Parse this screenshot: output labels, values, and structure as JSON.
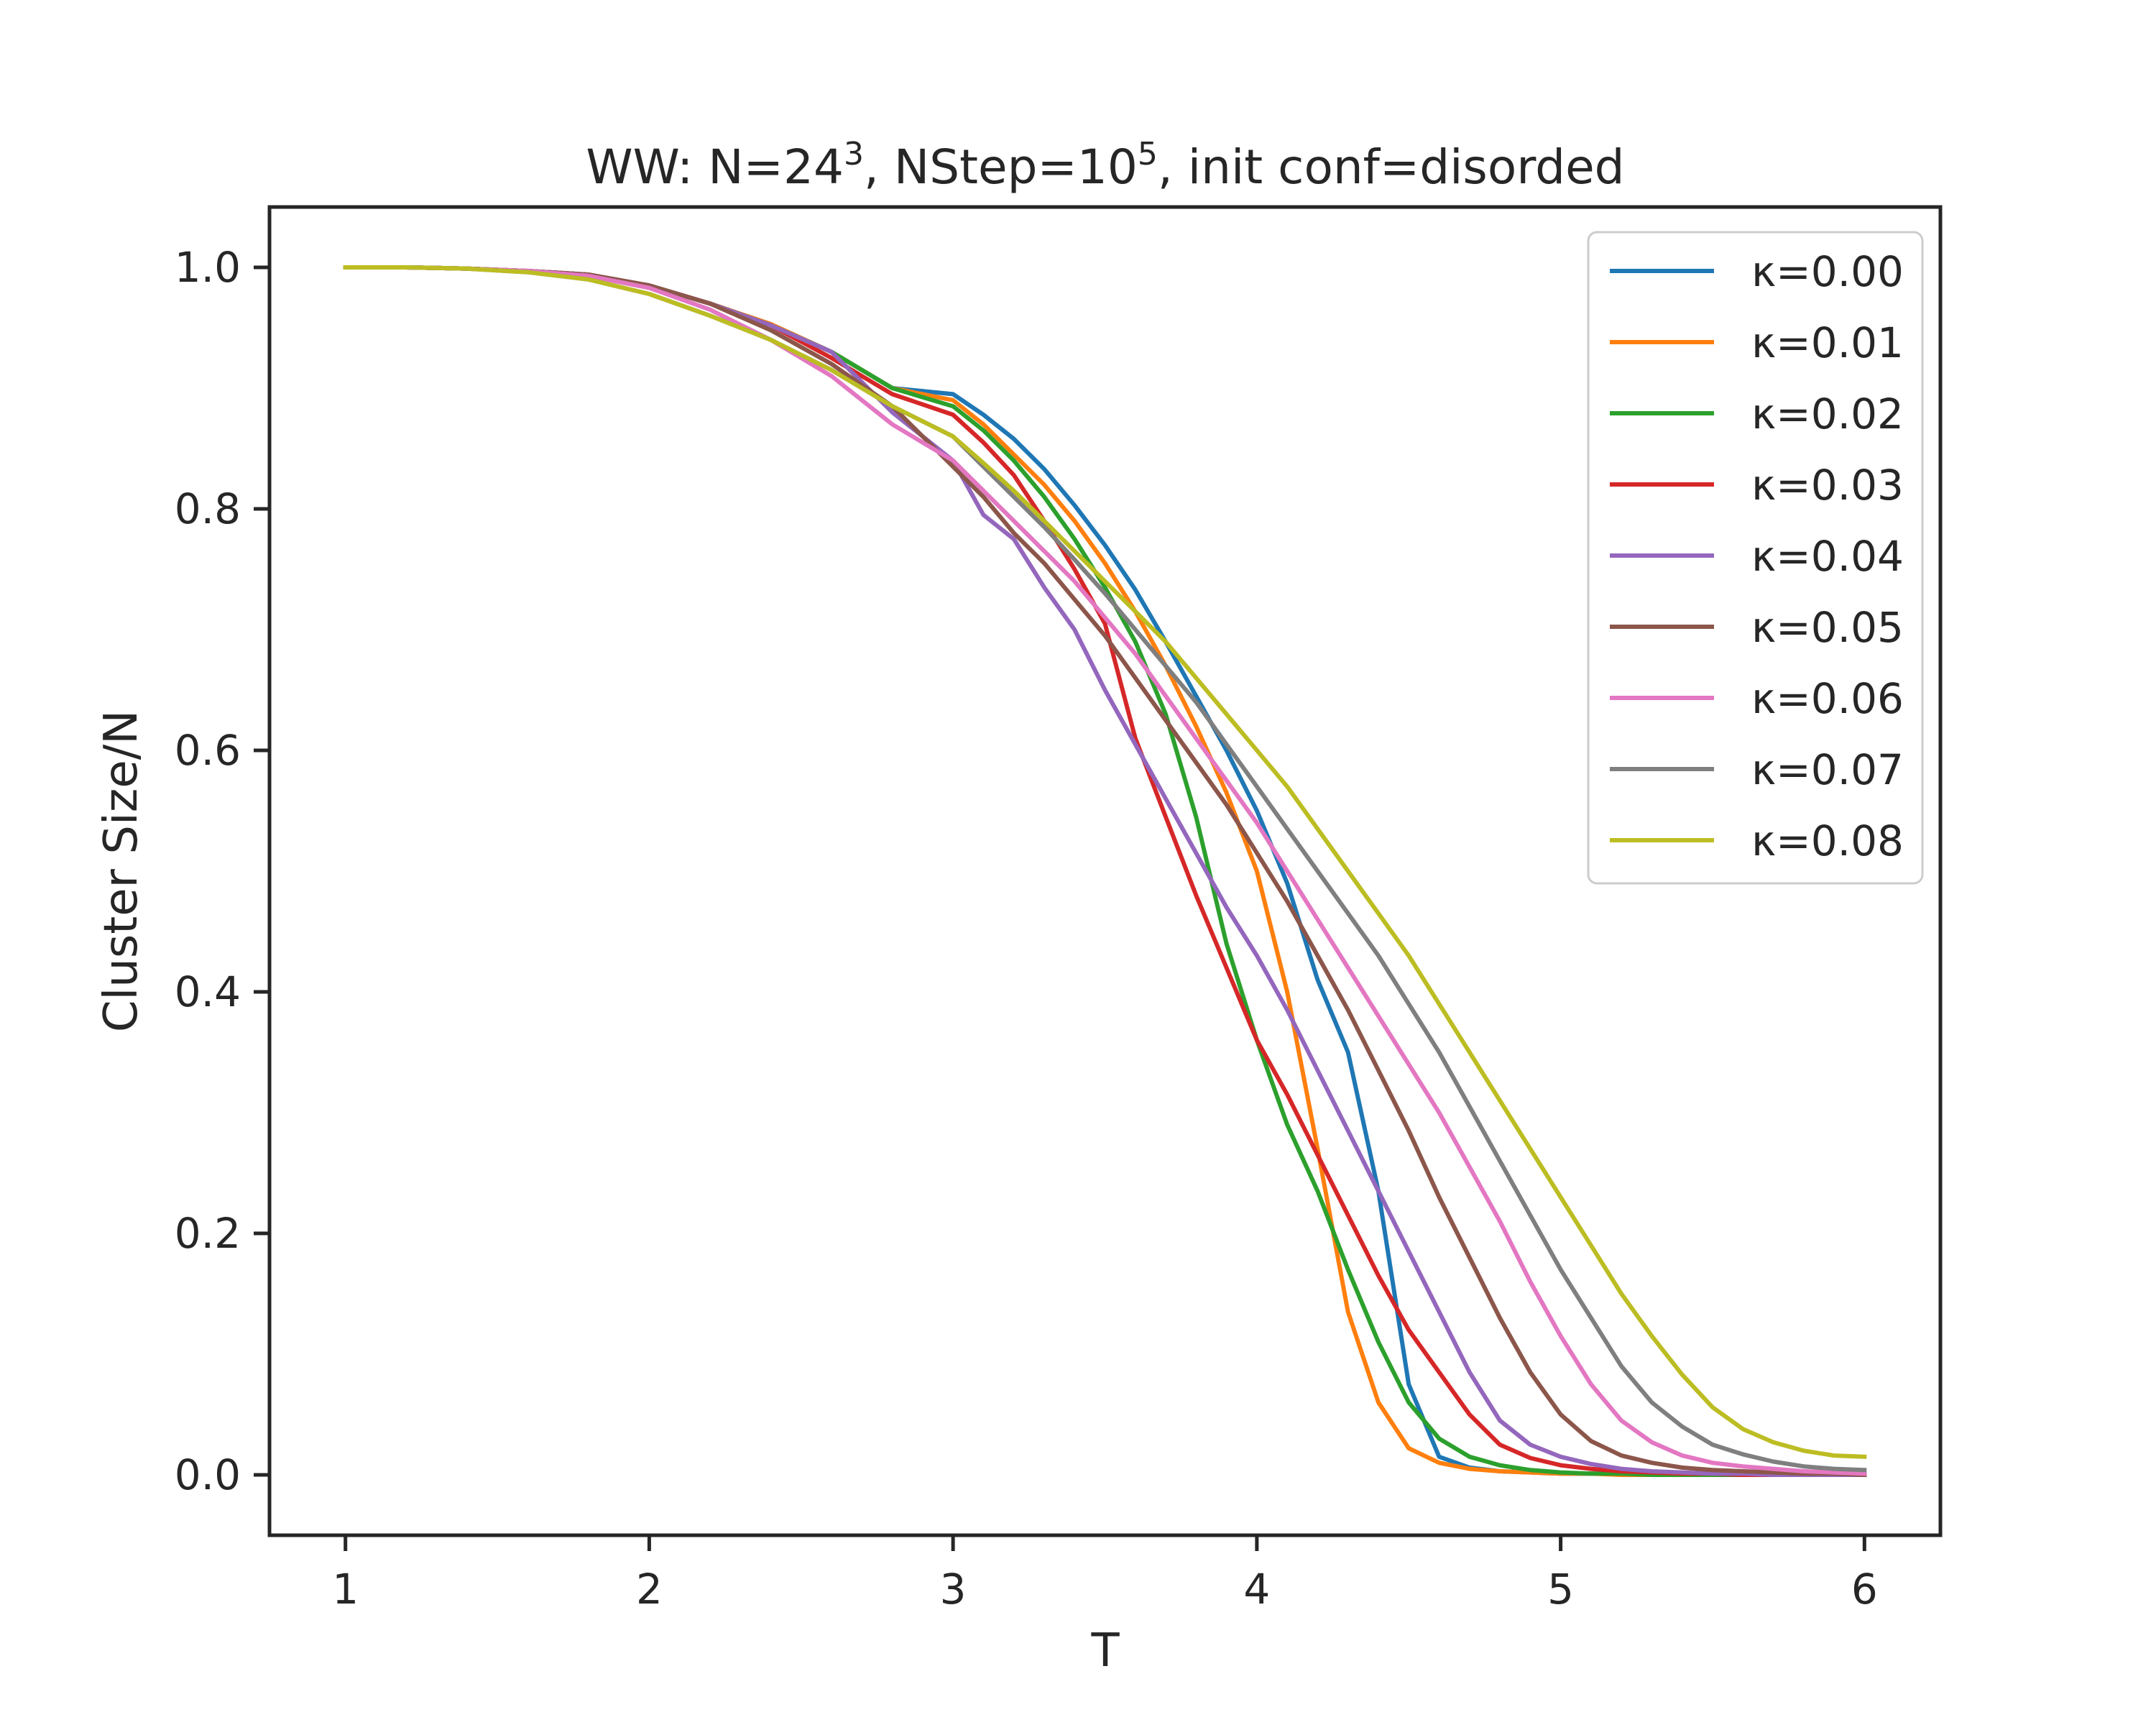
{
  "chart_data": {
    "type": "line",
    "title": {
      "text": "WW: N=24",
      "sup1": "3",
      "mid": ", NStep=10",
      "sup2": "5",
      "end": ", init conf=disorded"
    },
    "xlabel": "T",
    "ylabel": "Cluster Size/N",
    "xlim": [
      0.75,
      6.25
    ],
    "ylim": [
      -0.05,
      1.05
    ],
    "xticks": [
      1,
      2,
      3,
      4,
      5,
      6
    ],
    "yticks": [
      0.0,
      0.2,
      0.4,
      0.6,
      0.8,
      1.0
    ],
    "xtick_labels": [
      "1",
      "2",
      "3",
      "4",
      "5",
      "6"
    ],
    "ytick_labels": [
      "0.0",
      "0.2",
      "0.4",
      "0.6",
      "0.8",
      "1.0"
    ],
    "grid": false,
    "legend_position": "top-right",
    "x": [
      1.0,
      1.2,
      1.4,
      1.6,
      1.8,
      2.0,
      2.2,
      2.4,
      2.6,
      2.8,
      3.0,
      3.1,
      3.2,
      3.3,
      3.4,
      3.5,
      3.6,
      3.7,
      3.8,
      3.9,
      4.0,
      4.1,
      4.2,
      4.3,
      4.4,
      4.5,
      4.6,
      4.7,
      4.8,
      4.9,
      5.0,
      5.1,
      5.2,
      5.3,
      5.4,
      5.5,
      5.6,
      5.7,
      5.8,
      5.9,
      6.0
    ],
    "series": [
      {
        "name": "κ=0.00",
        "color": "#1f77b4",
        "values": [
          1.0,
          1.0,
          0.999,
          0.997,
          0.994,
          0.985,
          0.97,
          0.953,
          0.93,
          0.9,
          0.895,
          0.878,
          0.858,
          0.833,
          0.803,
          0.77,
          0.733,
          0.69,
          0.645,
          0.6,
          0.55,
          0.49,
          0.41,
          0.35,
          0.235,
          0.075,
          0.015,
          0.006,
          0.003,
          0.002,
          0.001,
          0.001,
          0.001,
          0.0,
          0.0,
          0.0,
          0.0,
          0.0,
          0.0,
          0.0,
          0.0
        ]
      },
      {
        "name": "κ=0.01",
        "color": "#ff7f0e",
        "values": [
          1.0,
          1.0,
          0.999,
          0.997,
          0.994,
          0.985,
          0.97,
          0.953,
          0.93,
          0.9,
          0.89,
          0.87,
          0.845,
          0.82,
          0.79,
          0.755,
          0.715,
          0.67,
          0.62,
          0.565,
          0.5,
          0.4,
          0.27,
          0.135,
          0.06,
          0.022,
          0.01,
          0.005,
          0.003,
          0.002,
          0.001,
          0.001,
          0.0,
          0.0,
          0.0,
          0.0,
          0.0,
          0.0,
          0.0,
          0.0,
          0.0
        ]
      },
      {
        "name": "κ=0.02",
        "color": "#2ca02c",
        "values": [
          1.0,
          1.0,
          0.999,
          0.997,
          0.994,
          0.985,
          0.97,
          0.952,
          0.93,
          0.9,
          0.885,
          0.865,
          0.84,
          0.81,
          0.775,
          0.735,
          0.69,
          0.63,
          0.545,
          0.44,
          0.36,
          0.29,
          0.235,
          0.17,
          0.11,
          0.06,
          0.03,
          0.015,
          0.008,
          0.004,
          0.002,
          0.001,
          0.001,
          0.0,
          0.0,
          0.0,
          0.0,
          0.0,
          0.0,
          0.0,
          0.0
        ]
      },
      {
        "name": "κ=0.03",
        "color": "#d62728",
        "values": [
          1.0,
          1.0,
          0.999,
          0.997,
          0.994,
          0.985,
          0.97,
          0.952,
          0.925,
          0.895,
          0.878,
          0.855,
          0.828,
          0.79,
          0.75,
          0.705,
          0.61,
          0.545,
          0.48,
          0.42,
          0.36,
          0.315,
          0.265,
          0.215,
          0.165,
          0.12,
          0.085,
          0.05,
          0.025,
          0.014,
          0.008,
          0.005,
          0.003,
          0.002,
          0.001,
          0.001,
          0.0,
          0.0,
          0.0,
          0.0,
          0.0
        ]
      },
      {
        "name": "κ=0.04",
        "color": "#9467bd",
        "values": [
          1.0,
          1.0,
          0.999,
          0.997,
          0.994,
          0.985,
          0.97,
          0.952,
          0.93,
          0.88,
          0.84,
          0.795,
          0.775,
          0.735,
          0.7,
          0.65,
          0.605,
          0.56,
          0.515,
          0.47,
          0.43,
          0.385,
          0.335,
          0.285,
          0.235,
          0.185,
          0.135,
          0.085,
          0.045,
          0.025,
          0.015,
          0.009,
          0.005,
          0.003,
          0.002,
          0.001,
          0.001,
          0.0,
          0.0,
          0.0,
          0.0
        ]
      },
      {
        "name": "κ=0.05",
        "color": "#8c564b",
        "values": [
          1.0,
          1.0,
          0.999,
          0.997,
          0.994,
          0.985,
          0.97,
          0.948,
          0.92,
          0.885,
          0.835,
          0.81,
          0.78,
          0.755,
          0.725,
          0.695,
          0.66,
          0.625,
          0.59,
          0.555,
          0.515,
          0.475,
          0.43,
          0.385,
          0.335,
          0.285,
          0.23,
          0.18,
          0.13,
          0.085,
          0.05,
          0.028,
          0.016,
          0.01,
          0.006,
          0.004,
          0.003,
          0.002,
          0.001,
          0.001,
          0.0
        ]
      },
      {
        "name": "κ=0.06",
        "color": "#e377c2",
        "values": [
          1.0,
          1.0,
          0.999,
          0.997,
          0.993,
          0.983,
          0.965,
          0.94,
          0.91,
          0.87,
          0.84,
          0.815,
          0.79,
          0.765,
          0.74,
          0.71,
          0.68,
          0.645,
          0.61,
          0.575,
          0.54,
          0.5,
          0.46,
          0.42,
          0.38,
          0.34,
          0.3,
          0.255,
          0.21,
          0.16,
          0.115,
          0.075,
          0.045,
          0.027,
          0.016,
          0.01,
          0.007,
          0.005,
          0.003,
          0.002,
          0.001
        ]
      },
      {
        "name": "κ=0.07",
        "color": "#7f7f7f",
        "values": [
          1.0,
          1.0,
          0.999,
          0.996,
          0.99,
          0.978,
          0.96,
          0.94,
          0.915,
          0.885,
          0.86,
          0.835,
          0.81,
          0.785,
          0.758,
          0.73,
          0.7,
          0.67,
          0.64,
          0.605,
          0.57,
          0.535,
          0.5,
          0.465,
          0.43,
          0.39,
          0.35,
          0.305,
          0.26,
          0.215,
          0.17,
          0.13,
          0.09,
          0.06,
          0.04,
          0.025,
          0.017,
          0.011,
          0.007,
          0.005,
          0.004
        ]
      },
      {
        "name": "κ=0.08",
        "color": "#bcbd22",
        "values": [
          1.0,
          1.0,
          0.999,
          0.996,
          0.99,
          0.978,
          0.96,
          0.94,
          0.915,
          0.885,
          0.86,
          0.838,
          0.815,
          0.79,
          0.765,
          0.74,
          0.715,
          0.69,
          0.66,
          0.63,
          0.6,
          0.57,
          0.535,
          0.5,
          0.465,
          0.43,
          0.39,
          0.35,
          0.31,
          0.27,
          0.23,
          0.19,
          0.15,
          0.115,
          0.083,
          0.056,
          0.038,
          0.027,
          0.02,
          0.016,
          0.015
        ]
      }
    ]
  }
}
